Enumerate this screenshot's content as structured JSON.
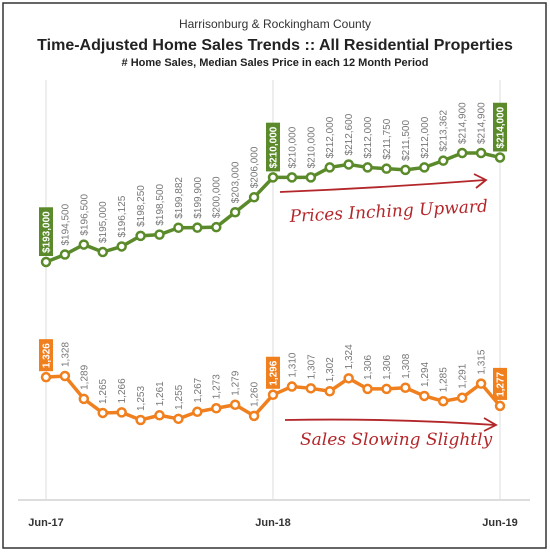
{
  "chart_data": {
    "type": "line",
    "supertitle": "Harrisonburg & Rockingham County",
    "title": "Time-Adjusted Home Sales Trends  ::  All Residential Properties",
    "subtitle": "# Home Sales, Median Sales Price in each 12 Month Period",
    "categories": [
      "Jun-17",
      null,
      null,
      null,
      null,
      null,
      null,
      null,
      null,
      null,
      null,
      null,
      "Jun-18",
      null,
      null,
      null,
      null,
      null,
      null,
      null,
      null,
      null,
      null,
      null,
      "Jun-19"
    ],
    "series": [
      {
        "name": "Median Sales Price",
        "color": "#5a8a2a",
        "values": [
          193000,
          194500,
          196500,
          195000,
          196125,
          198250,
          198500,
          199882,
          199900,
          200000,
          203000,
          206000,
          210000,
          210000,
          210000,
          212000,
          212600,
          212000,
          211750,
          211500,
          212000,
          213362,
          214900,
          214900,
          214000
        ],
        "value_labels": [
          "$193,000",
          "$194,500",
          "$196,500",
          "$195,000",
          "$196,125",
          "$198,250",
          "$198,500",
          "$199,882",
          "$199,900",
          "$200,000",
          "$203,000",
          "$206,000",
          "$210,000",
          "$210,000",
          "$210,000",
          "$212,000",
          "$212,600",
          "$212,000",
          "$211,750",
          "$211,500",
          "$212,000",
          "$213,362",
          "$214,900",
          "$214,900",
          "$214,000"
        ]
      },
      {
        "name": "# Home Sales",
        "color": "#f07f1e",
        "values": [
          1326,
          1328,
          1289,
          1265,
          1266,
          1253,
          1261,
          1255,
          1267,
          1273,
          1279,
          1260,
          1296,
          1310,
          1307,
          1302,
          1324,
          1306,
          1306,
          1308,
          1294,
          1285,
          1291,
          1315,
          1277
        ],
        "value_labels": [
          "1,326",
          "1,328",
          "1,289",
          "1,265",
          "1,266",
          "1,253",
          "1,261",
          "1,255",
          "1,267",
          "1,273",
          "1,279",
          "1,260",
          "1,296",
          "1,310",
          "1,307",
          "1,302",
          "1,324",
          "1,306",
          "1,306",
          "1,308",
          "1,294",
          "1,285",
          "1,291",
          "1,315",
          "1,277"
        ]
      }
    ],
    "annotations": [
      "Prices Inching Upward",
      "Sales Slowing Slightly"
    ]
  }
}
